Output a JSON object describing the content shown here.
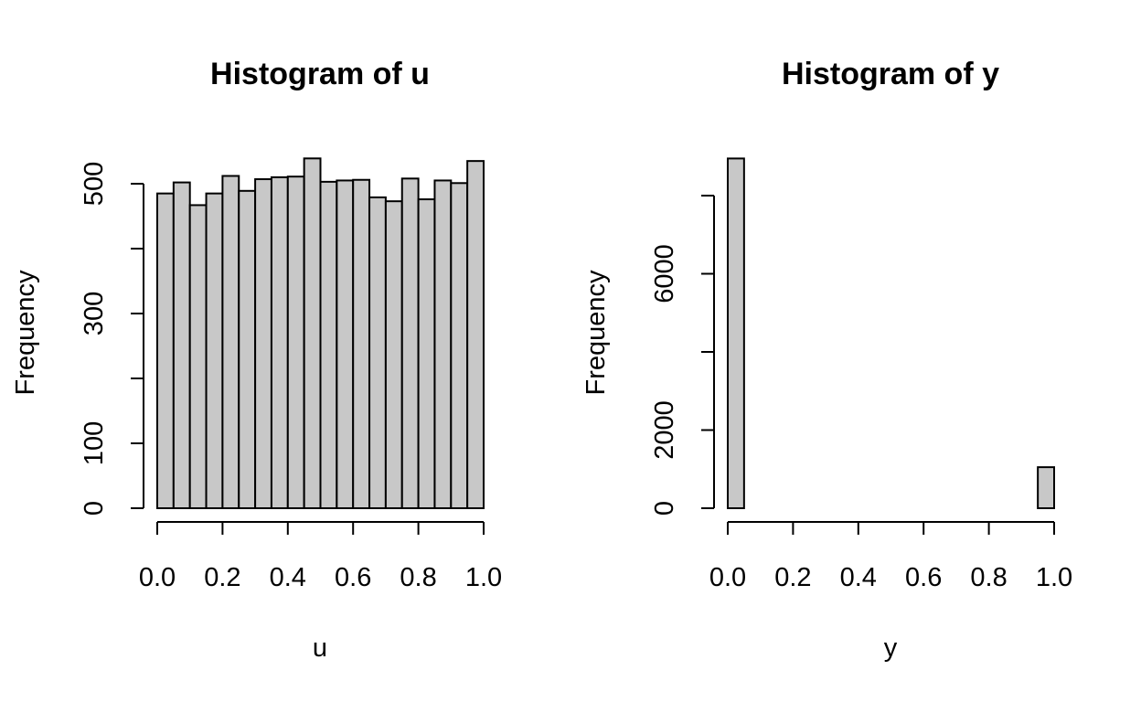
{
  "colors": {
    "bar_fill": "#c8c8c8",
    "bar_stroke": "#000000",
    "background": "#ffffff"
  },
  "chart_data": [
    {
      "type": "bar",
      "subtype": "histogram",
      "title": "Histogram of u",
      "xlabel": "u",
      "ylabel": "Frequency",
      "bin_edges": [
        0.0,
        0.05,
        0.1,
        0.15,
        0.2,
        0.25,
        0.3,
        0.35,
        0.4,
        0.45,
        0.5,
        0.55,
        0.6,
        0.65,
        0.7,
        0.75,
        0.8,
        0.85,
        0.9,
        0.95,
        1.0
      ],
      "values": [
        485,
        502,
        467,
        485,
        512,
        489,
        507,
        510,
        511,
        539,
        503,
        505,
        506,
        479,
        473,
        508,
        476,
        505,
        501,
        535
      ],
      "xlim": [
        0.0,
        1.0
      ],
      "ylim": [
        0,
        500
      ],
      "x_ticks": [
        0.0,
        0.2,
        0.4,
        0.6,
        0.8,
        1.0
      ],
      "x_tick_labels": [
        "0.0",
        "0.2",
        "0.4",
        "0.6",
        "0.8",
        "1.0"
      ],
      "y_ticks": [
        0,
        100,
        200,
        300,
        400,
        500
      ],
      "y_tick_labels": [
        "0",
        "100",
        "",
        "300",
        "",
        "500"
      ],
      "grid": false,
      "legend": "none"
    },
    {
      "type": "bar",
      "subtype": "histogram",
      "title": "Histogram of y",
      "xlabel": "y",
      "ylabel": "Frequency",
      "bin_edges": [
        0.0,
        0.05,
        0.1,
        0.15,
        0.2,
        0.25,
        0.3,
        0.35,
        0.4,
        0.45,
        0.5,
        0.55,
        0.6,
        0.65,
        0.7,
        0.75,
        0.8,
        0.85,
        0.9,
        0.95,
        1.0
      ],
      "values": [
        8950,
        0,
        0,
        0,
        0,
        0,
        0,
        0,
        0,
        0,
        0,
        0,
        0,
        0,
        0,
        0,
        0,
        0,
        0,
        1050
      ],
      "xlim": [
        0.0,
        1.0
      ],
      "ylim": [
        0,
        8000
      ],
      "x_ticks": [
        0.0,
        0.2,
        0.4,
        0.6,
        0.8,
        1.0
      ],
      "x_tick_labels": [
        "0.0",
        "0.2",
        "0.4",
        "0.6",
        "0.8",
        "1.0"
      ],
      "y_ticks": [
        0,
        2000,
        4000,
        6000,
        8000
      ],
      "y_tick_labels": [
        "0",
        "2000",
        "",
        "6000",
        ""
      ],
      "grid": false,
      "legend": "none"
    }
  ]
}
